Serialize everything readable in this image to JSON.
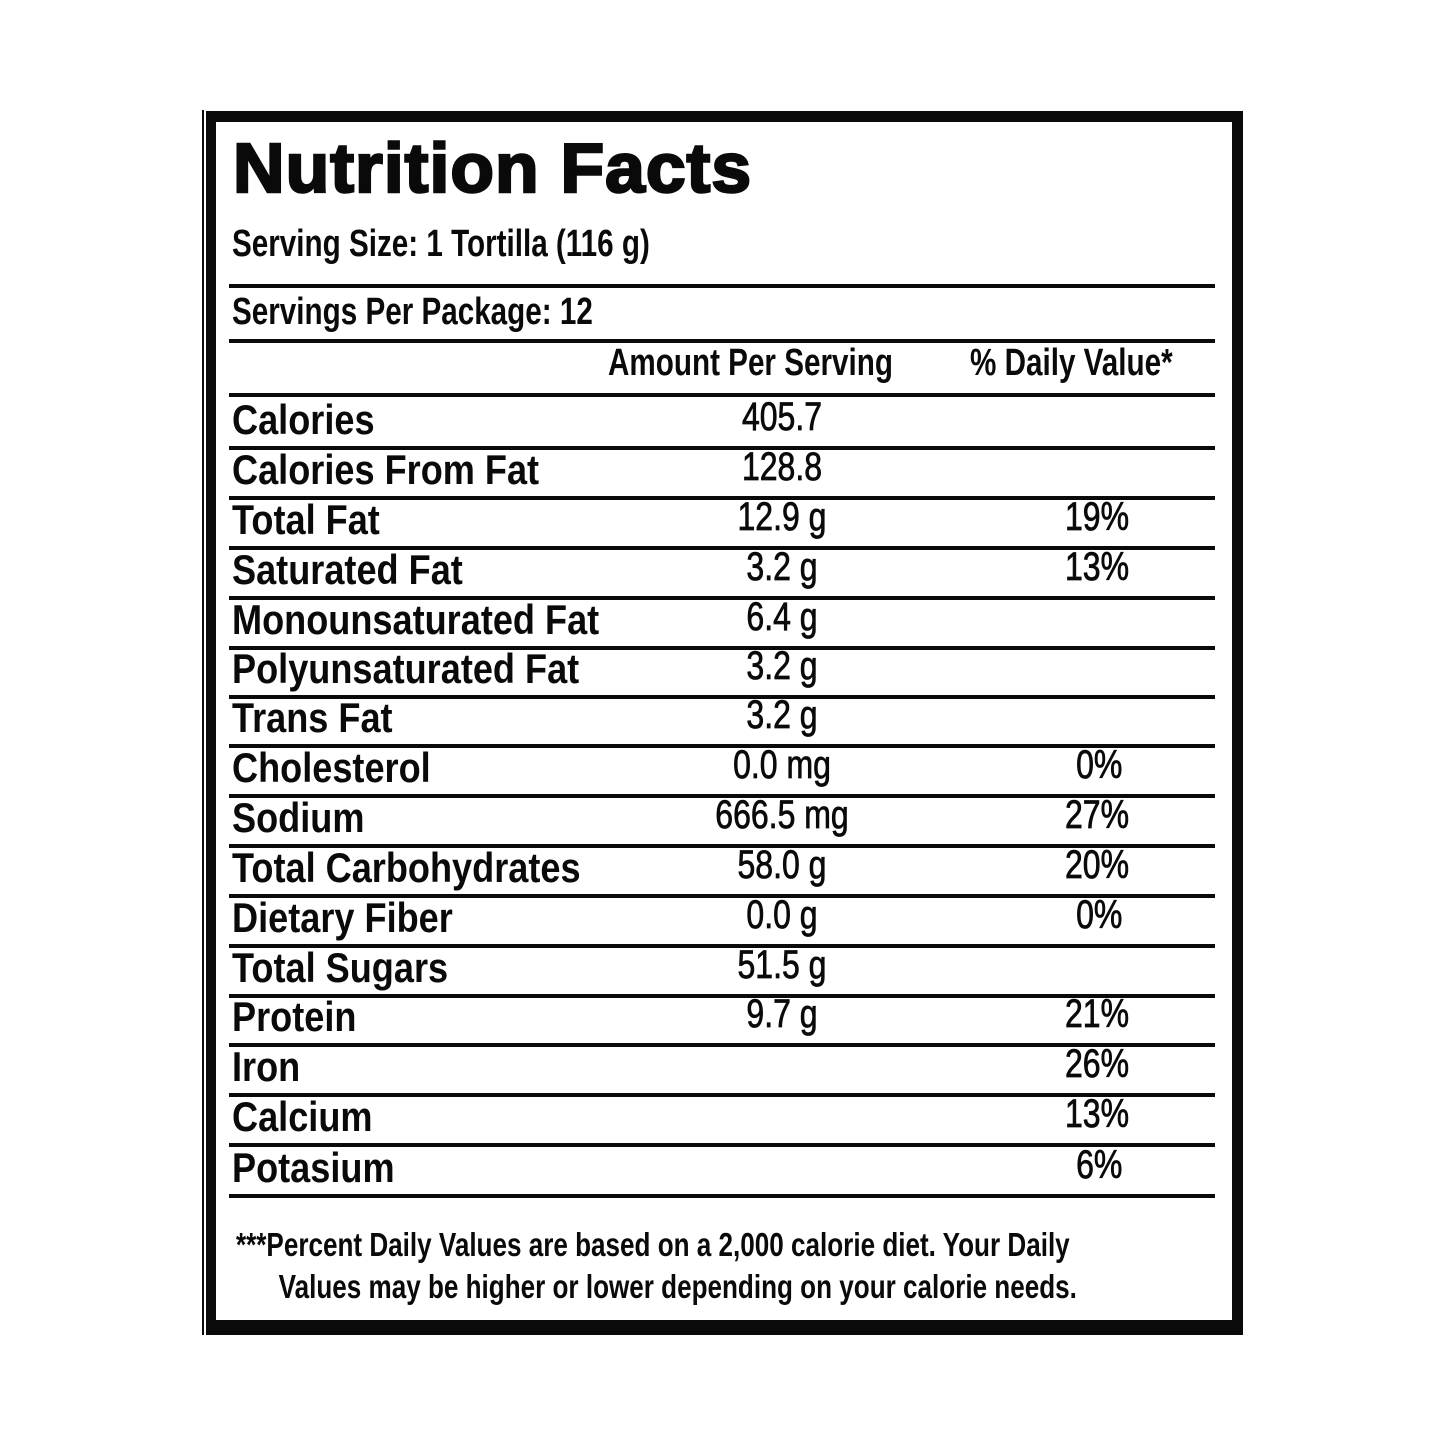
{
  "label": {
    "title": "Nutrition Facts",
    "serving_size": "Serving Size: 1 Tortilla (116 g)",
    "servings_per_package": "Servings Per Package: 12",
    "column_headers": {
      "amount": "Amount Per Serving",
      "daily_value": "% Daily Value*"
    },
    "rows": [
      {
        "name": "Calories",
        "amount": "405.7",
        "dv": ""
      },
      {
        "name": "Calories From Fat",
        "amount": "128.8",
        "dv": ""
      },
      {
        "name": "Total Fat",
        "amount": "12.9 g",
        "dv": "19%"
      },
      {
        "name": "Saturated Fat",
        "amount": "3.2 g",
        "dv": "13%"
      },
      {
        "name": "Monounsaturated Fat",
        "amount": "6.4 g",
        "dv": ""
      },
      {
        "name": "Polyunsaturated Fat",
        "amount": "3.2 g",
        "dv": ""
      },
      {
        "name": "Trans Fat",
        "amount": "3.2 g",
        "dv": ""
      },
      {
        "name": "Cholesterol",
        "amount": "0.0 mg",
        "dv": "0%"
      },
      {
        "name": "Sodium",
        "amount": "666.5 mg",
        "dv": "27%"
      },
      {
        "name": "Total Carbohydrates",
        "amount": "58.0 g",
        "dv": "20%"
      },
      {
        "name": "Dietary Fiber",
        "amount": "0.0 g",
        "dv": "0%"
      },
      {
        "name": "Total Sugars",
        "amount": "51.5 g",
        "dv": ""
      },
      {
        "name": "Protein",
        "amount": "9.7 g",
        "dv": "21%"
      },
      {
        "name": "Iron",
        "amount": "",
        "dv": "26%"
      },
      {
        "name": "Calcium",
        "amount": "",
        "dv": "13%"
      },
      {
        "name": "Potasium",
        "amount": "",
        "dv": "6%"
      }
    ],
    "footnote": {
      "line1": "***Percent Daily Values are based on a 2,000 calorie diet. Your Daily",
      "line2": "Values may be higher or lower depending on your calorie needs."
    }
  },
  "colors": {
    "ink": "#0a0a0a",
    "background": "#ffffff"
  }
}
